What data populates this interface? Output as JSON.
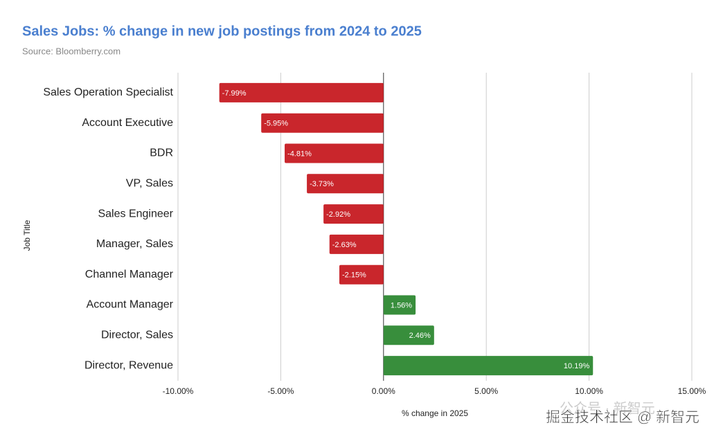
{
  "chart_data": {
    "type": "hbar",
    "title": "Sales Jobs: % change in new job postings from 2024 to 2025",
    "subtitle": "Source: Bloomberry.com",
    "x_label": "% change in 2025",
    "y_label": "Job Title",
    "categories": [
      "Sales Operation Specialist",
      "Account Executive",
      "BDR",
      "VP, Sales",
      "Sales Engineer",
      "Manager, Sales",
      "Channel Manager",
      "Account Manager",
      "Director, Sales",
      "Director, Revenue"
    ],
    "values": [
      -7.99,
      -5.95,
      -4.81,
      -3.73,
      -2.92,
      -2.63,
      -2.15,
      1.56,
      2.46,
      10.19
    ],
    "value_labels": [
      "-7.99%",
      "-5.95%",
      "-4.81%",
      "-3.73%",
      "-2.92%",
      "-2.63%",
      "-2.15%",
      "1.56%",
      "2.46%",
      "10.19%"
    ],
    "negative_color": "#c9262c",
    "positive_color": "#388e3c",
    "xlim": [
      -10,
      15
    ],
    "xticks": [
      {
        "value": -10,
        "label": "-10.00%"
      },
      {
        "value": -5,
        "label": "-5.00%"
      },
      {
        "value": 0,
        "label": "0.00%"
      },
      {
        "value": 5,
        "label": "5.00%"
      },
      {
        "value": 10,
        "label": "10.00%"
      },
      {
        "value": 15,
        "label": "15.00%"
      }
    ],
    "grid": true
  },
  "watermark": {
    "faded": "公众号 · 新智元",
    "text": "掘金技术社区 @ 新智元"
  }
}
